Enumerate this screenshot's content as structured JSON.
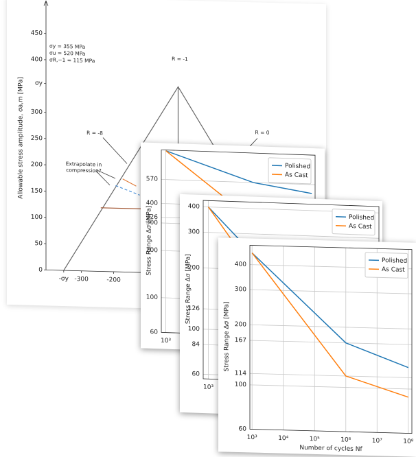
{
  "chart_data": [
    {
      "type": "line",
      "y_label": "Allowable stress amplitude, σa,m [MPa]",
      "properties": [
        "σy = 355 MPa",
        "σu = 520 MPa",
        "σR,−1 = 115 MPa"
      ],
      "annotations": [
        "R = -1",
        "R = 0",
        "R = -8"
      ],
      "annotation_lines": [
        "Extrapolate in",
        "compression?"
      ],
      "xlim": [
        -410,
        410
      ],
      "ylim": [
        0,
        500
      ],
      "xticks": [
        {
          "value": -355,
          "label": "-σy"
        },
        -300,
        -200
      ],
      "yticks": [
        0,
        50,
        100,
        150,
        200,
        250,
        300,
        {
          "value": 355,
          "label": "σy"
        },
        400,
        450
      ],
      "grid": false,
      "series": [
        {
          "color": "#666666",
          "x": [
            -355,
            0,
            355
          ],
          "values": [
            0,
            355,
            0
          ]
        },
        {
          "color": "#666666",
          "x": [
            0,
            0
          ],
          "values": [
            355,
            0
          ]
        },
        {
          "color": "#a0522d",
          "x": [
            -240,
            0
          ],
          "values": [
            121,
            121
          ]
        },
        {
          "color": "#e07b39",
          "x": [
            -172,
            -130
          ],
          "values": [
            177,
            164
          ]
        },
        {
          "color": "#4a90d9",
          "linestyle": "dashed",
          "x": [
            -194,
            -119
          ],
          "values": [
            164,
            147
          ]
        }
      ]
    },
    {
      "type": "line",
      "y_label": "Stress Range Δσ [MPa]",
      "log": true,
      "xlim": [
        700,
        130000000
      ],
      "ylim": [
        60,
        880
      ],
      "x": [
        1000,
        1000000,
        100000000
      ],
      "xticks": [
        {
          "value": 1000,
          "label": "10³"
        }
      ],
      "yticks": [
        60,
        100,
        200,
        300,
        326,
        400,
        570
      ],
      "grid": true,
      "legend": "upper right",
      "series": [
        {
          "name": "Polished",
          "color": "#1f77b4",
          "values": [
            870,
            570,
            500
          ]
        },
        {
          "name": "As Cast",
          "color": "#ff7f0e",
          "values": [
            870,
            326,
            260
          ]
        }
      ]
    },
    {
      "type": "line",
      "y_label": "Stress Range Δσ [MPa]",
      "log": true,
      "xlim": [
        700,
        130000000
      ],
      "ylim": [
        57,
        430
      ],
      "x": [
        1000,
        1000000,
        100000000
      ],
      "xticks": [
        {
          "value": 1000,
          "label": "10³"
        }
      ],
      "yticks": [
        60,
        84,
        100,
        126,
        200,
        300,
        400
      ],
      "grid": true,
      "legend": "upper right",
      "series": [
        {
          "name": "Polished",
          "color": "#1f77b4",
          "values": [
            400,
            126,
            90
          ]
        },
        {
          "name": "As Cast",
          "color": "#ff7f0e",
          "values": [
            400,
            84,
            62
          ]
        }
      ]
    },
    {
      "type": "line",
      "y_label": "Stress Range Δσ [MPa]",
      "x_label": "Number of cycles Nf",
      "log": true,
      "xlim": [
        850,
        130000000
      ],
      "ylim": [
        60,
        500
      ],
      "x": [
        1000,
        1000000,
        100000000
      ],
      "xticks": [
        {
          "value": 1000,
          "label": "10³"
        },
        {
          "value": 10000,
          "label": "10⁴"
        },
        {
          "value": 100000,
          "label": "10⁵"
        },
        {
          "value": 1000000,
          "label": "10⁶"
        },
        {
          "value": 10000000,
          "label": "10⁷"
        },
        {
          "value": 100000000,
          "label": "10⁸"
        }
      ],
      "yticks": [
        60,
        100,
        114,
        167,
        200,
        300,
        400
      ],
      "grid": true,
      "legend": "upper right",
      "series": [
        {
          "name": "Polished",
          "color": "#1f77b4",
          "values": [
            458,
            167,
            128
          ]
        },
        {
          "name": "As Cast",
          "color": "#ff7f0e",
          "values": [
            458,
            114,
            91
          ]
        }
      ]
    }
  ]
}
